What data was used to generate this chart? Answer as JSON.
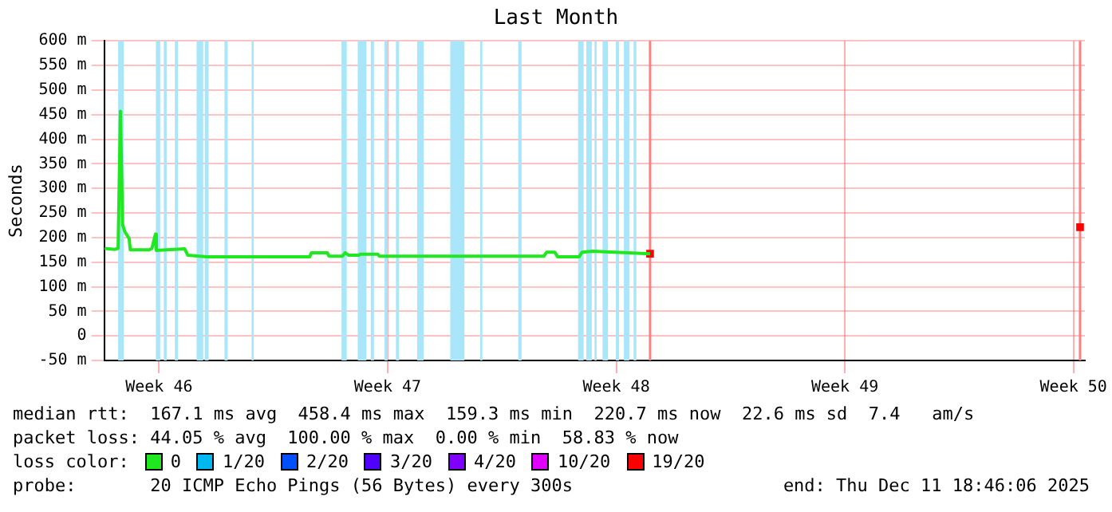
{
  "chart_data": {
    "type": "line",
    "title": "Last Month",
    "ylabel": "Seconds",
    "legend_title": "loss color:",
    "legend": "bottom",
    "grid": true,
    "marker": "none",
    "line_style": "solid",
    "xlim": [
      "2025-11-08T07:40",
      "2025-12-08T08:25"
    ],
    "xticks": [
      {
        "value": "2025-11-10",
        "label": "Week 46"
      },
      {
        "value": "2025-11-17",
        "label": "Week 47"
      },
      {
        "value": "2025-11-24",
        "label": "Week 48"
      },
      {
        "value": "2025-12-01",
        "label": "Week 49"
      },
      {
        "value": "2025-12-08",
        "label": "Week 50"
      }
    ],
    "ylim": [
      -50,
      600
    ],
    "yticks": [
      {
        "value": -50,
        "label": "-50 m"
      },
      0,
      {
        "value": 50,
        "label": "50 m"
      },
      {
        "value": 100,
        "label": "100 m"
      },
      {
        "value": 150,
        "label": "150 m"
      },
      {
        "value": 200,
        "label": "200 m"
      },
      {
        "value": 250,
        "label": "250 m"
      },
      {
        "value": 300,
        "label": "300 m"
      },
      {
        "value": 350,
        "label": "350 m"
      },
      {
        "value": 400,
        "label": "400 m"
      },
      {
        "value": 450,
        "label": "450 m"
      },
      {
        "value": 500,
        "label": "500 m"
      },
      {
        "value": 550,
        "label": "550 m"
      },
      {
        "value": 600,
        "label": "600 m"
      }
    ],
    "series": [
      {
        "name": "0",
        "color": "#20e820",
        "x": [
          "2025-11-08T08:00",
          "2025-11-08T15:35",
          "2025-11-08T17:55",
          "2025-11-08T19:35",
          "2025-11-08T21:15",
          "2025-11-08T22:50",
          "2025-11-09T02:00",
          "2025-11-09T02:50",
          "2025-11-09T16:45",
          "2025-11-09T18:45",
          "2025-11-09T21:20",
          "2025-11-09T22:00",
          "2025-11-10T18:50",
          "2025-11-10T21:10",
          "2025-11-11T10:45",
          "2025-11-14T14:45",
          "2025-11-14T15:55",
          "2025-11-15T03:40",
          "2025-11-15T04:50",
          "2025-11-15T14:45",
          "2025-11-15T16:45",
          "2025-11-15T19:25",
          "2025-11-16T02:50",
          "2025-11-16T04:00",
          "2025-11-16T16:45",
          "2025-11-16T17:55",
          "2025-11-21T18:45",
          "2025-11-21T20:45",
          "2025-11-22T02:50",
          "2025-11-22T04:50",
          "2025-11-22T20:45",
          "2025-11-22T22:50",
          "2025-11-23T06:50",
          "2025-11-23T22:50",
          "2025-11-25T00:50"
        ],
        "values": [
          178,
          176,
          178,
          457,
          226,
          212,
          198,
          175,
          175,
          178,
          207,
          174,
          177,
          164,
          161,
          161,
          169,
          169,
          162,
          162,
          169,
          164,
          164,
          166,
          166,
          162,
          162,
          170,
          170,
          161,
          161,
          170,
          172,
          170,
          167
        ]
      },
      {
        "name": "1/20",
        "color": "#00b8f0"
      },
      {
        "name": "2/20",
        "color": "#0050ff"
      },
      {
        "name": "3/20",
        "color": "#5000ff"
      },
      {
        "name": "4/20",
        "color": "#8000ff"
      },
      {
        "name": "10/20",
        "color": "#e000ff"
      },
      {
        "name": "19/20",
        "color": "#ff0000",
        "type": "scatter",
        "marker": "square",
        "x": [
          "2025-11-25T00:50",
          "2025-12-08T04:50"
        ],
        "values": [
          167,
          221
        ]
      }
    ],
    "bands": [
      {
        "axis": "x",
        "from": "2025-11-08T17:55",
        "to": "2025-11-08T22:00",
        "color": "#aae6fa"
      },
      {
        "axis": "x",
        "from": "2025-11-09T21:40",
        "to": "2025-11-10T00:50",
        "color": "#aae6fa"
      },
      {
        "axis": "x",
        "from": "2025-11-10T03:30",
        "to": "2025-11-10T05:35",
        "color": "#aae6fa"
      },
      {
        "axis": "x",
        "from": "2025-11-10T11:35",
        "to": "2025-11-10T13:55",
        "color": "#aae6fa"
      },
      {
        "axis": "x",
        "from": "2025-11-11T03:35",
        "to": "2025-11-11T08:25",
        "color": "#aae6fa"
      },
      {
        "axis": "x",
        "from": "2025-11-11T09:35",
        "to": "2025-11-11T12:25",
        "color": "#aae6fa"
      },
      {
        "axis": "x",
        "from": "2025-11-12T00:05",
        "to": "2025-11-12T02:25",
        "color": "#aae6fa"
      },
      {
        "axis": "x",
        "from": "2025-11-12T20:00",
        "to": "2025-11-12T21:35",
        "color": "#aae6fa"
      },
      {
        "axis": "x",
        "from": "2025-11-15T14:05",
        "to": "2025-11-15T17:55",
        "color": "#aae6fa"
      },
      {
        "axis": "x",
        "from": "2025-11-16T02:00",
        "to": "2025-11-16T08:25",
        "color": "#aae6fa"
      },
      {
        "axis": "x",
        "from": "2025-11-16T11:35",
        "to": "2025-11-16T13:55",
        "color": "#aae6fa"
      },
      {
        "axis": "x",
        "from": "2025-11-16T21:40",
        "to": "2025-11-17T00:00",
        "color": "#aae6fa"
      },
      {
        "axis": "x",
        "from": "2025-11-17T06:05",
        "to": "2025-11-17T08:25",
        "color": "#aae6fa"
      },
      {
        "axis": "x",
        "from": "2025-11-17T21:40",
        "to": "2025-11-18T02:25",
        "color": "#aae6fa"
      },
      {
        "axis": "x",
        "from": "2025-11-18T22:00",
        "to": "2025-11-19T08:25",
        "color": "#aae6fa"
      },
      {
        "axis": "x",
        "from": "2025-11-19T20:00",
        "to": "2025-11-19T21:35",
        "color": "#aae6fa"
      },
      {
        "axis": "x",
        "from": "2025-11-20T23:55",
        "to": "2025-11-21T02:25",
        "color": "#aae6fa"
      },
      {
        "axis": "x",
        "from": "2025-11-22T19:55",
        "to": "2025-11-23T00:00",
        "color": "#aae6fa"
      },
      {
        "axis": "x",
        "from": "2025-11-23T02:00",
        "to": "2025-11-23T06:00",
        "color": "#aae6fa"
      },
      {
        "axis": "x",
        "from": "2025-11-23T08:00",
        "to": "2025-11-23T09:35",
        "color": "#aae6fa"
      },
      {
        "axis": "x",
        "from": "2025-11-23T13:55",
        "to": "2025-11-23T17:55",
        "color": "#aae6fa"
      },
      {
        "axis": "x",
        "from": "2025-11-23T23:40",
        "to": "2025-11-24T02:00",
        "color": "#aae6fa"
      },
      {
        "axis": "x",
        "from": "2025-11-24T05:35",
        "to": "2025-11-24T09:35",
        "color": "#aae6fa"
      },
      {
        "axis": "x",
        "from": "2025-11-24T12:45",
        "to": "2025-11-24T14:45",
        "color": "#aae6fa"
      }
    ],
    "ref_lines": [
      {
        "axis": "x",
        "value": "2025-11-25T00:50",
        "color": "#ff8080"
      },
      {
        "axis": "x",
        "value": "2025-12-08T04:50",
        "color": "#ff8080"
      }
    ],
    "annotations": [
      "median rtt:  167.1 ms avg  458.4 ms max  159.3 ms min  220.7 ms now  22.6 ms sd  7.4   am/s",
      "packet loss: 44.05 % avg  100.00 % max  0.00 % min  58.83 % now",
      "probe:       20 ICMP Echo Pings (56 Bytes) every 300s",
      "end: Thu Dec 11 18:46:06 2025"
    ]
  }
}
